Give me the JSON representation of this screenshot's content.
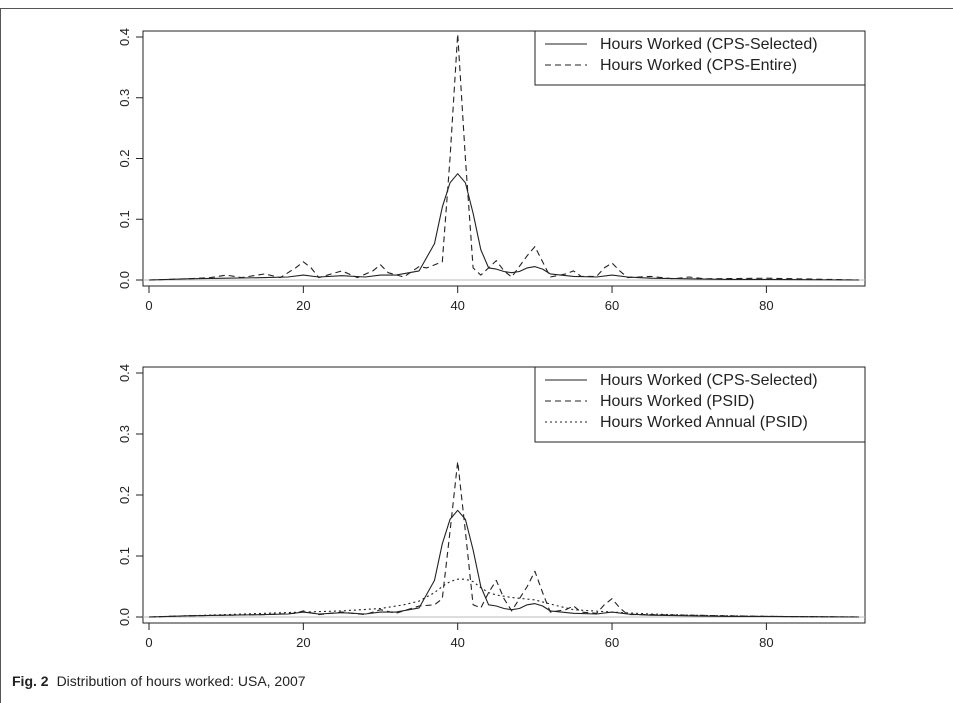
{
  "caption": {
    "label": "Fig. 2",
    "text": "Distribution of hours worked: USA, 2007"
  },
  "chart_data": [
    {
      "type": "line",
      "title": "",
      "xlabel": "",
      "ylabel": "",
      "xlim": [
        0,
        92
      ],
      "ylim": [
        0,
        0.4
      ],
      "x_ticks": [
        "0",
        "20",
        "40",
        "60",
        "80"
      ],
      "y_ticks": [
        "0.0",
        "0.1",
        "0.2",
        "0.3",
        "0.4"
      ],
      "legend_position": "top-right",
      "grid": false,
      "series": [
        {
          "name": "Hours Worked (CPS-Selected)",
          "style": "solid",
          "points": [
            [
              0,
              0
            ],
            [
              5,
              0.002
            ],
            [
              10,
              0.003
            ],
            [
              15,
              0.004
            ],
            [
              18,
              0.005
            ],
            [
              20,
              0.008
            ],
            [
              22,
              0.005
            ],
            [
              25,
              0.007
            ],
            [
              28,
              0.005
            ],
            [
              30,
              0.008
            ],
            [
              32,
              0.008
            ],
            [
              35,
              0.015
            ],
            [
              37,
              0.06
            ],
            [
              38,
              0.12
            ],
            [
              39,
              0.16
            ],
            [
              40,
              0.175
            ],
            [
              41,
              0.16
            ],
            [
              42,
              0.11
            ],
            [
              43,
              0.05
            ],
            [
              44,
              0.02
            ],
            [
              45,
              0.018
            ],
            [
              46,
              0.014
            ],
            [
              47,
              0.012
            ],
            [
              48,
              0.014
            ],
            [
              49,
              0.02
            ],
            [
              50,
              0.022
            ],
            [
              51,
              0.018
            ],
            [
              52,
              0.01
            ],
            [
              55,
              0.006
            ],
            [
              58,
              0.005
            ],
            [
              60,
              0.008
            ],
            [
              62,
              0.005
            ],
            [
              65,
              0.003
            ],
            [
              70,
              0.002
            ],
            [
              75,
              0.001
            ],
            [
              80,
              0.001
            ],
            [
              92,
              0
            ]
          ]
        },
        {
          "name": "Hours Worked (CPS-Entire)",
          "style": "dashed",
          "points": [
            [
              0,
              0
            ],
            [
              5,
              0.002
            ],
            [
              8,
              0.004
            ],
            [
              10,
              0.008
            ],
            [
              12,
              0.004
            ],
            [
              15,
              0.01
            ],
            [
              17,
              0.004
            ],
            [
              19,
              0.02
            ],
            [
              20,
              0.03
            ],
            [
              21,
              0.02
            ],
            [
              22,
              0.004
            ],
            [
              25,
              0.015
            ],
            [
              27,
              0.004
            ],
            [
              29,
              0.015
            ],
            [
              30,
              0.025
            ],
            [
              31,
              0.012
            ],
            [
              33,
              0.005
            ],
            [
              35,
              0.022
            ],
            [
              36,
              0.02
            ],
            [
              38,
              0.03
            ],
            [
              39,
              0.2
            ],
            [
              40,
              0.405
            ],
            [
              41,
              0.2
            ],
            [
              42,
              0.02
            ],
            [
              43,
              0.008
            ],
            [
              44,
              0.02
            ],
            [
              45,
              0.032
            ],
            [
              46,
              0.015
            ],
            [
              47,
              0.005
            ],
            [
              49,
              0.04
            ],
            [
              50,
              0.055
            ],
            [
              51,
              0.03
            ],
            [
              52,
              0.005
            ],
            [
              54,
              0.01
            ],
            [
              55,
              0.015
            ],
            [
              56,
              0.006
            ],
            [
              58,
              0.006
            ],
            [
              59,
              0.02
            ],
            [
              60,
              0.028
            ],
            [
              61,
              0.015
            ],
            [
              62,
              0.004
            ],
            [
              65,
              0.006
            ],
            [
              68,
              0.002
            ],
            [
              70,
              0.005
            ],
            [
              72,
              0.002
            ],
            [
              80,
              0.003
            ],
            [
              92,
              0
            ]
          ]
        }
      ]
    },
    {
      "type": "line",
      "title": "",
      "xlabel": "",
      "ylabel": "",
      "xlim": [
        0,
        92
      ],
      "ylim": [
        0,
        0.4
      ],
      "x_ticks": [
        "0",
        "20",
        "40",
        "60",
        "80"
      ],
      "y_ticks": [
        "0.0",
        "0.1",
        "0.2",
        "0.3",
        "0.4"
      ],
      "legend_position": "top-right",
      "grid": false,
      "series": [
        {
          "name": "Hours Worked (CPS-Selected)",
          "style": "solid",
          "points": [
            [
              0,
              0
            ],
            [
              5,
              0.002
            ],
            [
              10,
              0.003
            ],
            [
              15,
              0.004
            ],
            [
              18,
              0.005
            ],
            [
              20,
              0.008
            ],
            [
              22,
              0.005
            ],
            [
              25,
              0.007
            ],
            [
              28,
              0.005
            ],
            [
              30,
              0.008
            ],
            [
              32,
              0.008
            ],
            [
              35,
              0.015
            ],
            [
              37,
              0.06
            ],
            [
              38,
              0.12
            ],
            [
              39,
              0.16
            ],
            [
              40,
              0.175
            ],
            [
              41,
              0.16
            ],
            [
              42,
              0.11
            ],
            [
              43,
              0.05
            ],
            [
              44,
              0.02
            ],
            [
              45,
              0.018
            ],
            [
              46,
              0.014
            ],
            [
              47,
              0.012
            ],
            [
              48,
              0.014
            ],
            [
              49,
              0.02
            ],
            [
              50,
              0.022
            ],
            [
              51,
              0.018
            ],
            [
              52,
              0.01
            ],
            [
              55,
              0.006
            ],
            [
              58,
              0.005
            ],
            [
              60,
              0.008
            ],
            [
              62,
              0.005
            ],
            [
              65,
              0.003
            ],
            [
              70,
              0.002
            ],
            [
              75,
              0.001
            ],
            [
              80,
              0.001
            ],
            [
              92,
              0
            ]
          ]
        },
        {
          "name": "Hours Worked (PSID)",
          "style": "dashed",
          "points": [
            [
              0,
              0
            ],
            [
              5,
              0.002
            ],
            [
              10,
              0.003
            ],
            [
              15,
              0.004
            ],
            [
              19,
              0.006
            ],
            [
              20,
              0.01
            ],
            [
              22,
              0.004
            ],
            [
              25,
              0.008
            ],
            [
              28,
              0.004
            ],
            [
              30,
              0.012
            ],
            [
              32,
              0.006
            ],
            [
              35,
              0.018
            ],
            [
              37,
              0.02
            ],
            [
              38,
              0.03
            ],
            [
              39,
              0.14
            ],
            [
              40,
              0.255
            ],
            [
              41,
              0.14
            ],
            [
              42,
              0.02
            ],
            [
              43,
              0.015
            ],
            [
              44,
              0.04
            ],
            [
              45,
              0.06
            ],
            [
              46,
              0.03
            ],
            [
              47,
              0.01
            ],
            [
              49,
              0.05
            ],
            [
              50,
              0.075
            ],
            [
              51,
              0.04
            ],
            [
              52,
              0.008
            ],
            [
              54,
              0.012
            ],
            [
              55,
              0.018
            ],
            [
              56,
              0.008
            ],
            [
              58,
              0.006
            ],
            [
              59,
              0.02
            ],
            [
              60,
              0.03
            ],
            [
              61,
              0.015
            ],
            [
              62,
              0.004
            ],
            [
              65,
              0.004
            ],
            [
              70,
              0.003
            ],
            [
              75,
              0.002
            ],
            [
              80,
              0.001
            ],
            [
              92,
              0
            ]
          ]
        },
        {
          "name": "Hours Worked Annual (PSID)",
          "style": "dotted",
          "points": [
            [
              0,
              0
            ],
            [
              5,
              0.002
            ],
            [
              10,
              0.004
            ],
            [
              15,
              0.006
            ],
            [
              20,
              0.008
            ],
            [
              25,
              0.01
            ],
            [
              30,
              0.014
            ],
            [
              33,
              0.02
            ],
            [
              35,
              0.026
            ],
            [
              37,
              0.04
            ],
            [
              38,
              0.05
            ],
            [
              39,
              0.058
            ],
            [
              40,
              0.062
            ],
            [
              41,
              0.062
            ],
            [
              42,
              0.058
            ],
            [
              43,
              0.048
            ],
            [
              44,
              0.04
            ],
            [
              45,
              0.036
            ],
            [
              47,
              0.032
            ],
            [
              50,
              0.028
            ],
            [
              53,
              0.018
            ],
            [
              55,
              0.012
            ],
            [
              60,
              0.008
            ],
            [
              65,
              0.005
            ],
            [
              70,
              0.003
            ],
            [
              75,
              0.002
            ],
            [
              80,
              0.001
            ],
            [
              92,
              0
            ]
          ]
        }
      ]
    }
  ]
}
